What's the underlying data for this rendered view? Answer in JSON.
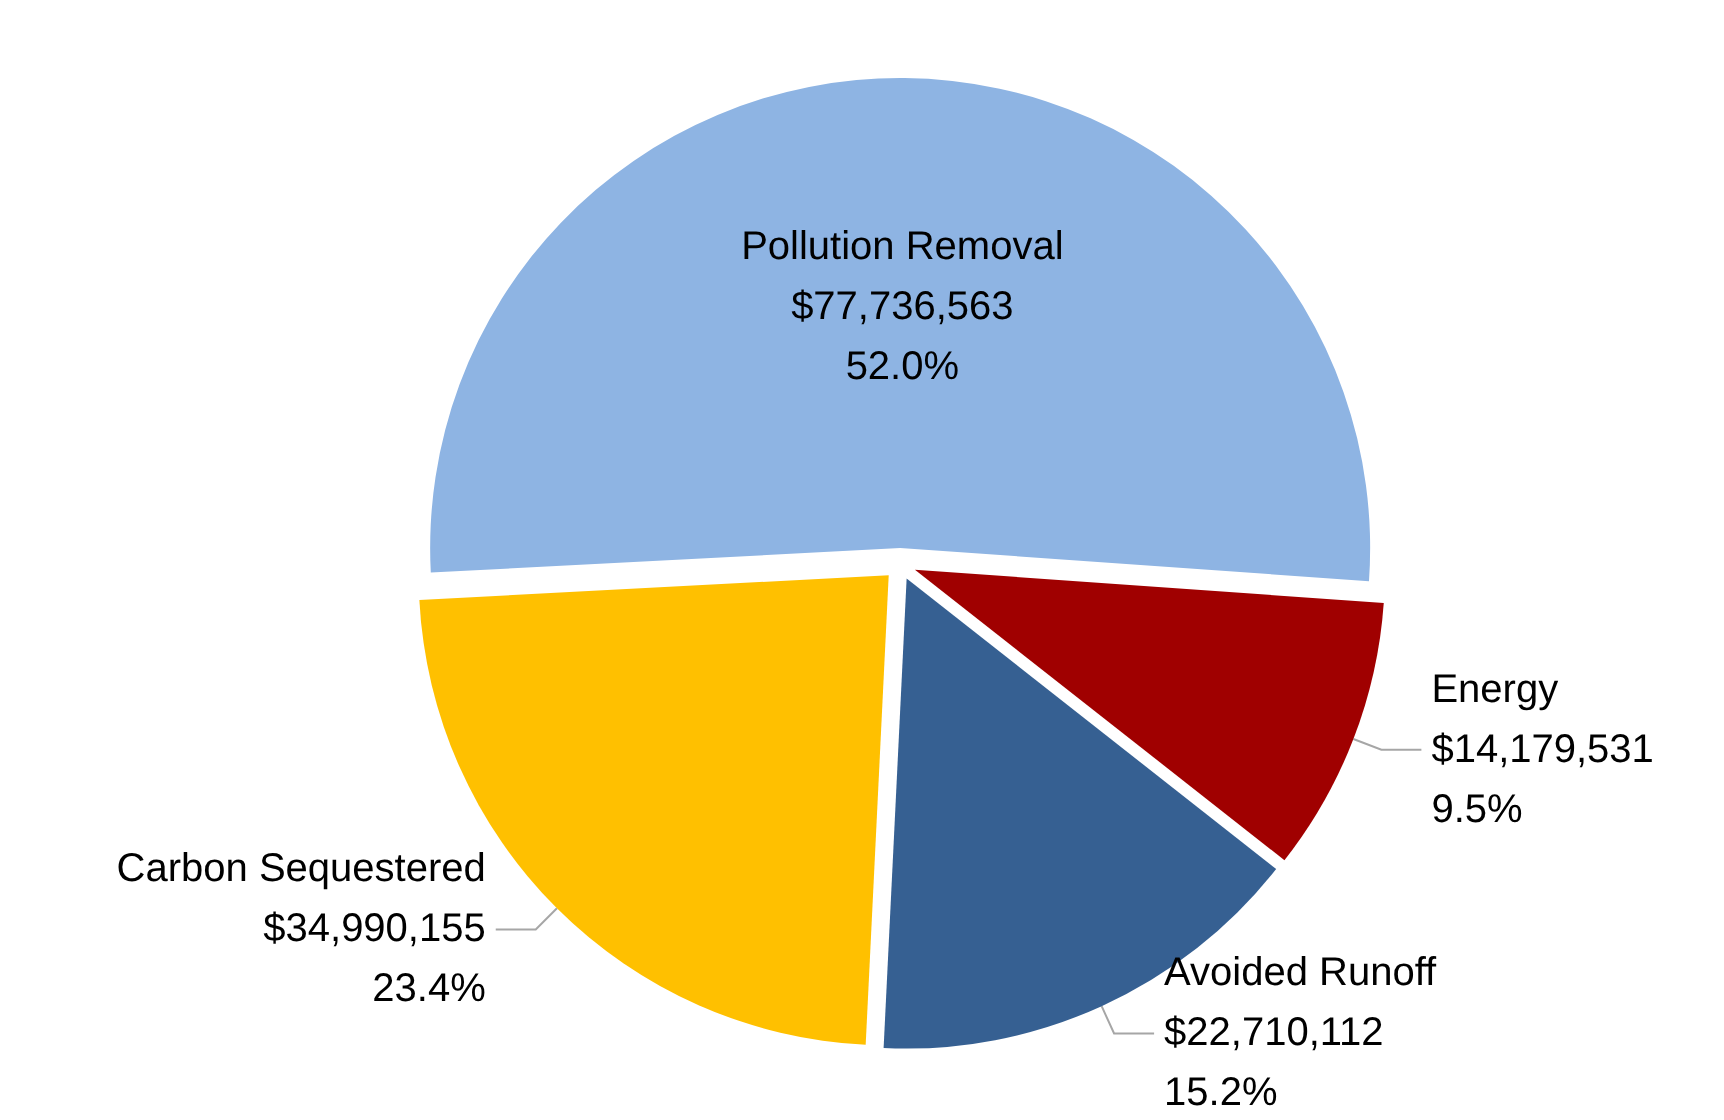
{
  "chart_data": {
    "type": "pie",
    "categories": [
      "Pollution Removal",
      "Energy",
      "Avoided Runoff",
      "Carbon Sequestered"
    ],
    "values": [
      77736563,
      14179531,
      22710112,
      34990155
    ],
    "colors": [
      "#8eb4e3",
      "#a00000",
      "#366092",
      "#ffc000"
    ],
    "value_labels": [
      "$77,736,563\n52.0%",
      "$14,179,531\n9.5%",
      "$22,710,112\n15.2%",
      "$34,990,155\n23.4%"
    ],
    "legend": false
  }
}
